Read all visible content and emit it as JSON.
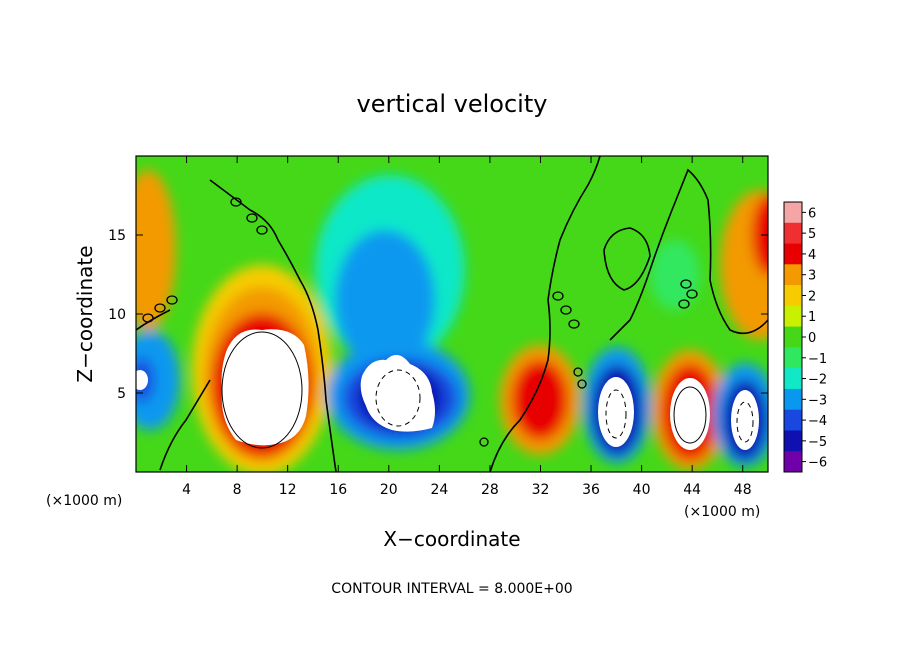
{
  "chart_data": {
    "type": "heatmap",
    "title": "vertical velocity",
    "xlabel": "X−coordinate",
    "ylabel": "Z−coordinate",
    "x_unit_label": "(×1000 m)",
    "y_unit_label": "(×1000 m)",
    "footer": "CONTOUR INTERVAL = 8.000E+00",
    "xlim": [
      0,
      50
    ],
    "ylim": [
      0,
      20
    ],
    "x_ticks": [
      4,
      8,
      12,
      16,
      20,
      24,
      28,
      32,
      36,
      40,
      44,
      48
    ],
    "y_ticks": [
      5,
      10,
      15
    ],
    "x_tick_labels": [
      "4",
      "8",
      "12",
      "16",
      "20",
      "24",
      "28",
      "32",
      "36",
      "40",
      "44",
      "48"
    ],
    "y_tick_labels": [
      "5",
      "10",
      "15"
    ],
    "colorbar": {
      "ticks": [
        6,
        5,
        4,
        3,
        2,
        1,
        0,
        -1,
        -2,
        -3,
        -4,
        -5,
        -6
      ],
      "tick_labels": [
        "6",
        "5",
        "4",
        "3",
        "2",
        "1",
        "0",
        "−1",
        "−2",
        "−3",
        "−4",
        "−5",
        "−6"
      ],
      "colors": [
        "#f4a5a5",
        "#f03030",
        "#e80000",
        "#f39a00",
        "#f6cc00",
        "#c8f000",
        "#44d818",
        "#30e860",
        "#10e8c8",
        "#0898f0",
        "#1848e0",
        "#1010b0",
        "#7000a8"
      ]
    },
    "features": [
      {
        "kind": "updraft",
        "x": 10,
        "z": 5,
        "peak": 10
      },
      {
        "kind": "downdraft",
        "x": 20.5,
        "z": 5,
        "peak": -8
      },
      {
        "kind": "updraft",
        "x": 32,
        "z": 4.5,
        "peak": 5
      },
      {
        "kind": "downdraft",
        "x": 38,
        "z": 3.5,
        "peak": -8
      },
      {
        "kind": "updraft",
        "x": 44,
        "z": 3.5,
        "peak": 9
      },
      {
        "kind": "downdraft",
        "x": 48.2,
        "z": 3.5,
        "peak": -8
      },
      {
        "kind": "updraft",
        "x": 0.5,
        "z": 16,
        "peak": 3.5
      },
      {
        "kind": "updraft",
        "x": 49.5,
        "z": 15,
        "peak": 4
      },
      {
        "kind": "downdraft",
        "x": 19,
        "z": 12,
        "peak": -3
      },
      {
        "kind": "downdraft",
        "x": 0.5,
        "z": 6,
        "peak": -5
      }
    ]
  }
}
